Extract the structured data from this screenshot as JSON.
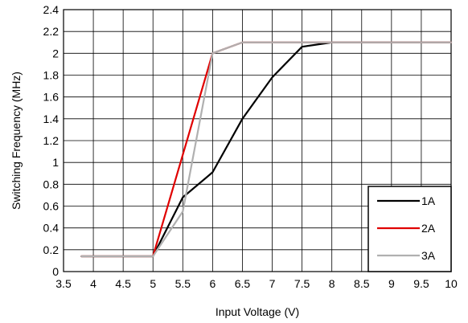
{
  "chart_data": {
    "type": "line",
    "title": "",
    "xlabel": "Input Voltage (V)",
    "ylabel": "Switching Frequency (MHz)",
    "xlim": [
      3.5,
      10
    ],
    "ylim": [
      0,
      2.4
    ],
    "x_ticks": [
      "3.5",
      "4",
      "4.5",
      "5",
      "5.5",
      "6",
      "6.5",
      "7",
      "7.5",
      "8",
      "8.5",
      "9",
      "9.5",
      "10"
    ],
    "y_ticks": [
      "0",
      "0.2",
      "0.4",
      "0.6",
      "0.8",
      "1",
      "1.2",
      "1.4",
      "1.6",
      "1.8",
      "2",
      "2.2",
      "2.4"
    ],
    "grid": true,
    "legend_position": "bottom-right",
    "series": [
      {
        "name": "1A",
        "color": "#000000",
        "points": [
          [
            3.8,
            0.14
          ],
          [
            5,
            0.14
          ],
          [
            5.5,
            0.68
          ],
          [
            6,
            0.91
          ],
          [
            6.5,
            1.4
          ],
          [
            7,
            1.78
          ],
          [
            7.5,
            2.06
          ],
          [
            8,
            2.1
          ],
          [
            8.5,
            2.1
          ],
          [
            9,
            2.1
          ],
          [
            9.5,
            2.1
          ],
          [
            10,
            2.1
          ]
        ]
      },
      {
        "name": "2A",
        "color": "#e00000",
        "points": [
          [
            3.8,
            0.14
          ],
          [
            5,
            0.14
          ],
          [
            6,
            2.0
          ],
          [
            6.5,
            2.1
          ],
          [
            7,
            2.1
          ],
          [
            7.5,
            2.1
          ],
          [
            8,
            2.1
          ],
          [
            8.5,
            2.1
          ],
          [
            9,
            2.1
          ],
          [
            9.5,
            2.1
          ],
          [
            10,
            2.1
          ]
        ]
      },
      {
        "name": "3A",
        "color": "#b0b0b0",
        "points": [
          [
            3.8,
            0.14
          ],
          [
            5,
            0.14
          ],
          [
            5.5,
            0.55
          ],
          [
            6,
            2.0
          ],
          [
            6.5,
            2.1
          ],
          [
            7,
            2.1
          ],
          [
            7.5,
            2.1
          ],
          [
            8,
            2.1
          ],
          [
            8.5,
            2.1
          ],
          [
            9,
            2.1
          ],
          [
            9.5,
            2.1
          ],
          [
            10,
            2.1
          ]
        ]
      }
    ]
  }
}
